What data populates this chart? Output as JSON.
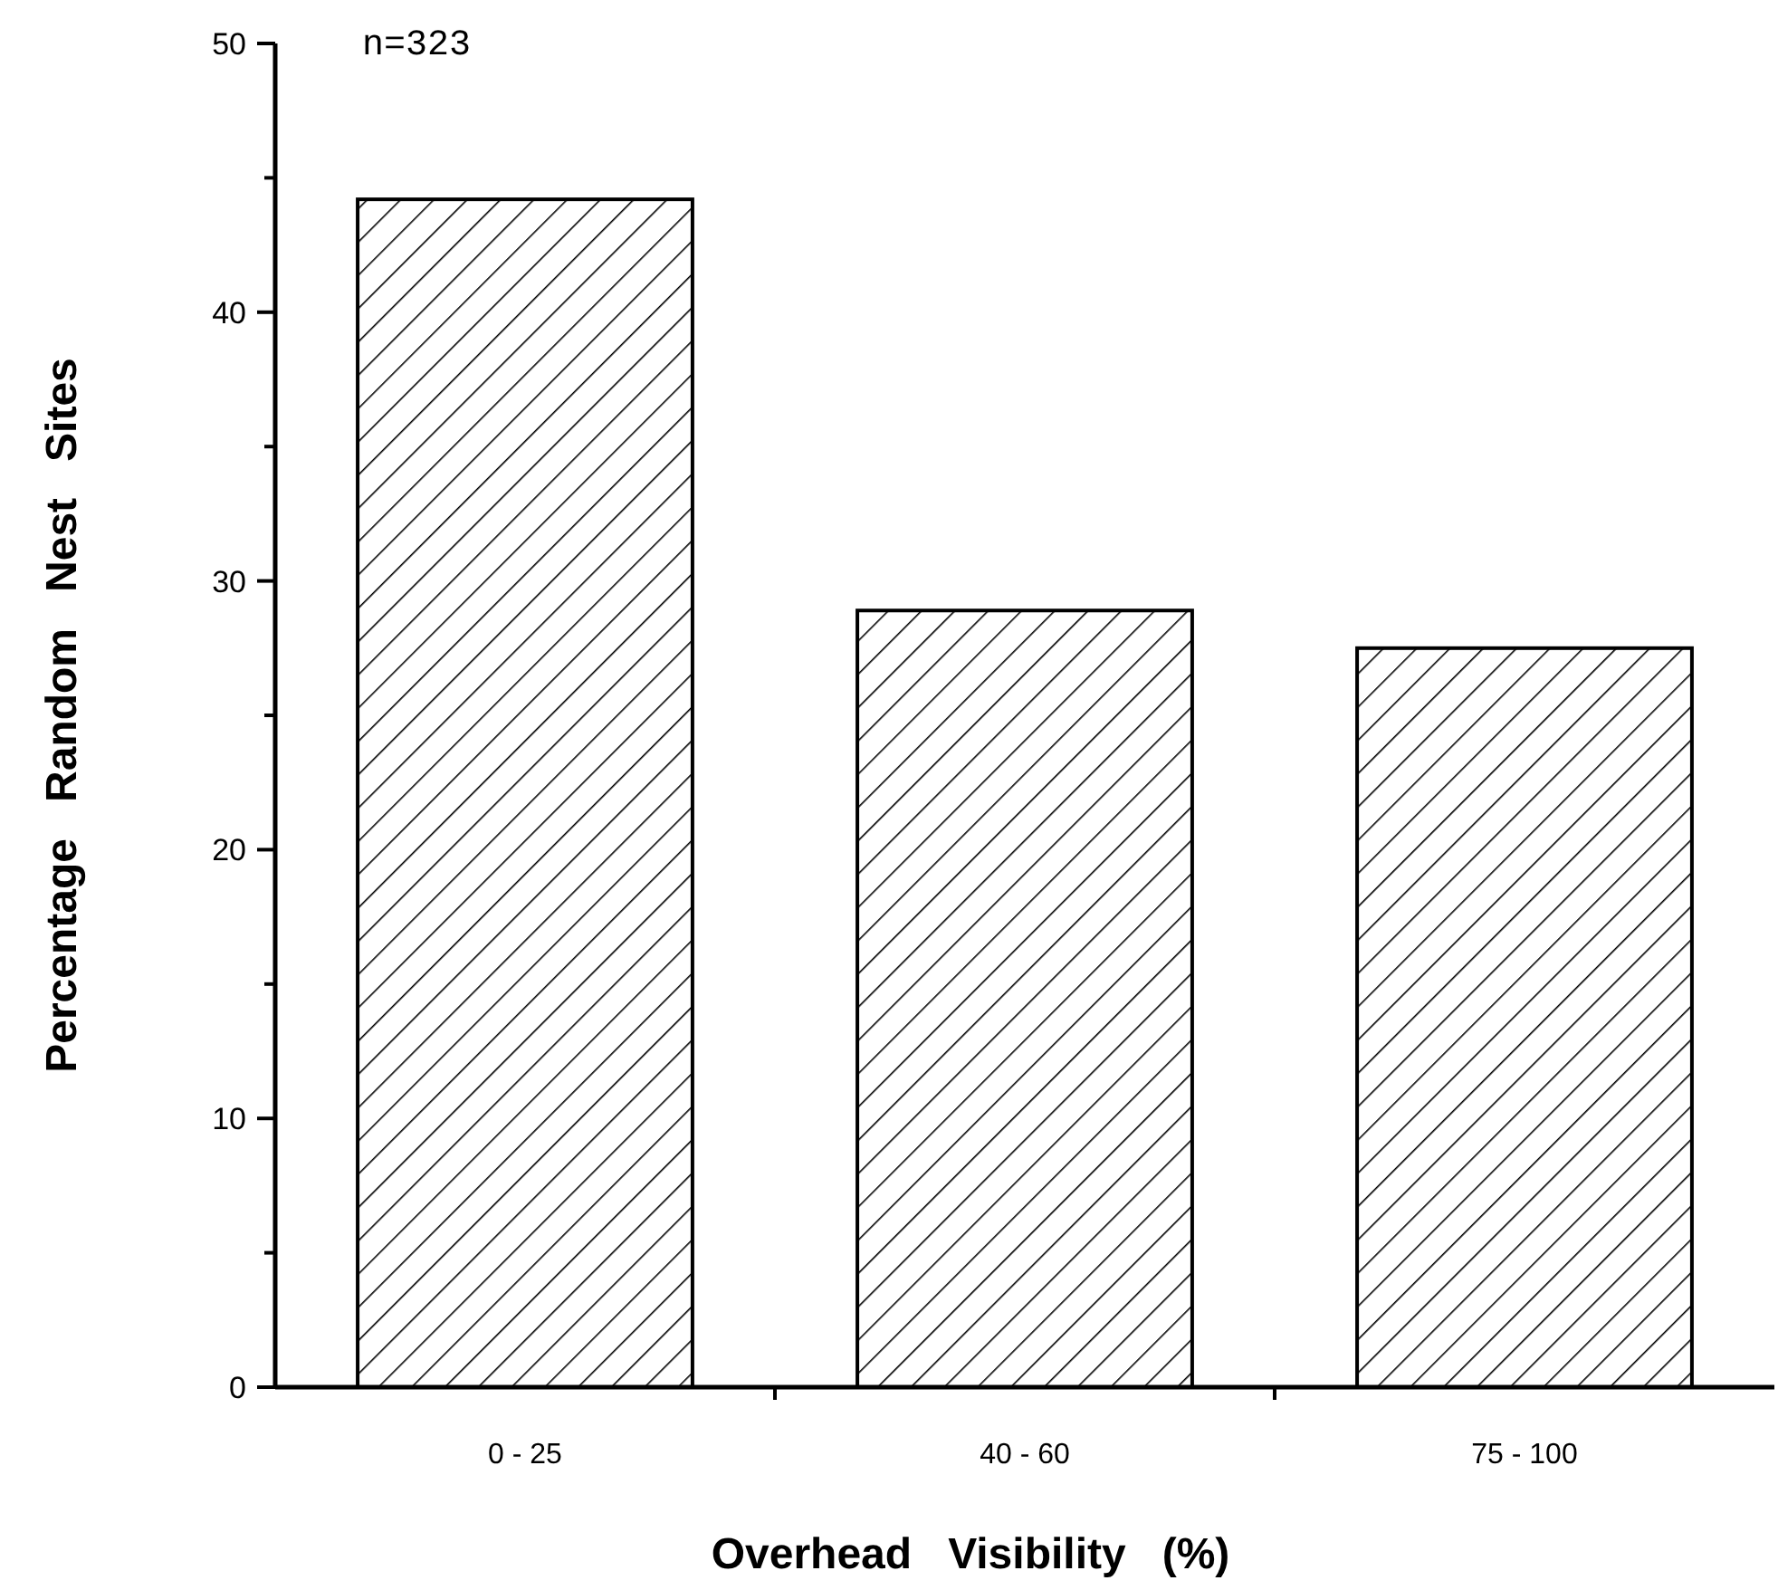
{
  "chart_data": {
    "type": "bar",
    "xlabel": "Overhead   Visibility   (%)",
    "ylabel": "Percentage   Random   Nest   Sites",
    "categories": [
      "0 - 25",
      "40 - 60",
      "75 - 100"
    ],
    "values": [
      44.2,
      28.9,
      27.5
    ],
    "color": "#000000",
    "ylim": [
      0,
      50
    ],
    "yticks": [
      0,
      {
        "value": 5,
        "label": null
      },
      10,
      {
        "value": 15,
        "label": null
      },
      20,
      {
        "value": 25,
        "label": null
      },
      30,
      {
        "value": 35,
        "label": null
      },
      40,
      {
        "value": 45,
        "label": null
      },
      50
    ],
    "grid": false,
    "annotations": [
      "n=323"
    ]
  }
}
